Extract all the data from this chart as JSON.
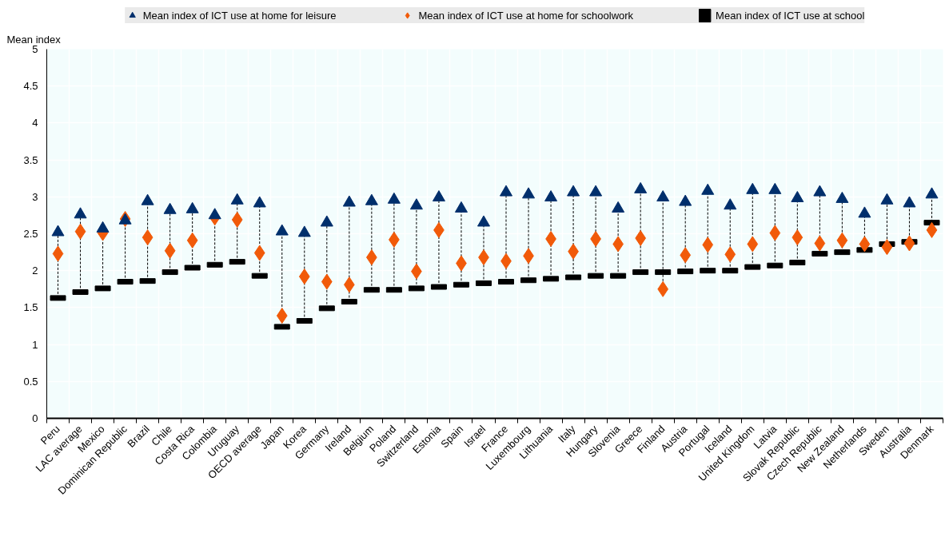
{
  "chart_data": {
    "type": "scatter",
    "categories": [
      "Peru",
      "LAC average",
      "Mexico",
      "Dominican Republic",
      "Brazil",
      "Chile",
      "Costa Rica",
      "Colombia",
      "Uruguay",
      "OECD average",
      "Japan",
      "Korea",
      "Germany",
      "Ireland",
      "Belgium",
      "Poland",
      "Switzerland",
      "Estonia",
      "Spain",
      "Israel",
      "France",
      "Luxembourg",
      "Lithuania",
      "Italy",
      "Hungary",
      "Slovenia",
      "Greece",
      "Finland",
      "Austria",
      "Portugal",
      "Iceland",
      "United Kingdom",
      "Latvia",
      "Slovak Republic",
      "Czech Republic",
      "New Zealand",
      "Netherlands",
      "Sweden",
      "Australia",
      "Denmark"
    ],
    "ylabel": "Mean index",
    "ylim": [
      0,
      5
    ],
    "yticks": [
      0,
      0.5,
      1,
      1.5,
      2,
      2.5,
      3,
      3.5,
      4,
      4.5,
      5
    ],
    "grid": true,
    "legend": "top",
    "series": [
      {
        "name": "Mean index of ICT use at home for leisure",
        "color": "#002f6c",
        "marker": "triangle",
        "values": [
          2.52,
          2.76,
          2.57,
          2.68,
          2.94,
          2.82,
          2.83,
          2.75,
          2.95,
          2.91,
          2.53,
          2.51,
          2.65,
          2.92,
          2.94,
          2.96,
          2.88,
          2.99,
          2.84,
          2.65,
          3.06,
          3.03,
          2.99,
          3.06,
          3.06,
          2.84,
          3.1,
          2.99,
          2.93,
          3.08,
          2.88,
          3.09,
          3.09,
          2.98,
          3.06,
          2.97,
          2.77,
          2.95,
          2.91,
          3.03
        ]
      },
      {
        "name": "Mean index of ICT use at home for schoolwork",
        "color": "#f15a09",
        "marker": "diamond",
        "values": [
          2.23,
          2.53,
          2.51,
          2.7,
          2.45,
          2.27,
          2.41,
          2.72,
          2.69,
          2.24,
          1.39,
          1.92,
          1.85,
          1.81,
          2.18,
          2.42,
          1.99,
          2.55,
          2.1,
          2.18,
          2.13,
          2.2,
          2.43,
          2.26,
          2.43,
          2.36,
          2.44,
          1.75,
          2.21,
          2.35,
          2.22,
          2.36,
          2.51,
          2.45,
          2.37,
          2.41,
          2.36,
          2.32,
          2.37,
          2.55
        ]
      },
      {
        "name": "Mean index of ICT use at school",
        "color": "#000000",
        "marker": "square",
        "values": [
          1.63,
          1.71,
          1.76,
          1.85,
          1.86,
          1.98,
          2.04,
          2.08,
          2.12,
          1.93,
          1.24,
          1.32,
          1.49,
          1.58,
          1.74,
          1.74,
          1.76,
          1.78,
          1.81,
          1.83,
          1.85,
          1.87,
          1.89,
          1.91,
          1.93,
          1.93,
          1.98,
          1.98,
          1.99,
          2.0,
          2.0,
          2.05,
          2.07,
          2.11,
          2.23,
          2.25,
          2.28,
          2.36,
          2.39,
          2.65
        ]
      }
    ]
  }
}
